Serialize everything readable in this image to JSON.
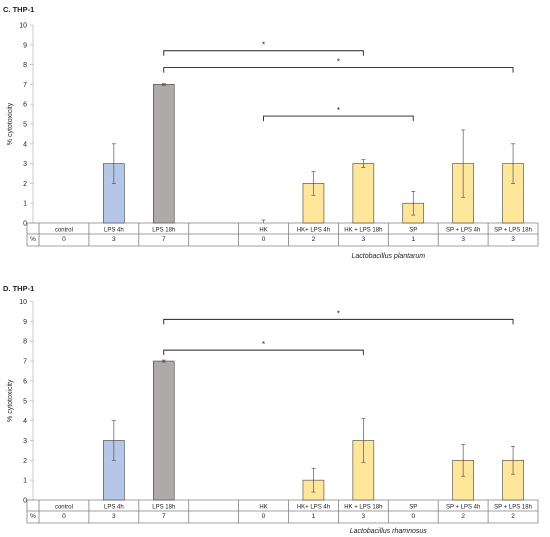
{
  "chart_data": [
    {
      "type": "bar",
      "panel_label": "C. THP-1",
      "ylabel": "% cytotoxicity",
      "ylim": [
        0,
        10
      ],
      "yticks": [
        0,
        1,
        2,
        3,
        4,
        5,
        6,
        7,
        8,
        9,
        10
      ],
      "grid": false,
      "xlabel": "Lactobacillus plantarum",
      "row_label": "%",
      "categories": [
        "control",
        "LPS 4h",
        "LPS 18h",
        "",
        "HK",
        "HK+ LPS 4h",
        "HK + LPS 18h",
        "SP",
        "SP + LPS 4h",
        "SP + LPS 18h"
      ],
      "values": [
        0,
        3,
        7,
        null,
        0,
        2,
        3,
        1,
        3,
        3
      ],
      "error": [
        0,
        1,
        0.05,
        null,
        0.15,
        0.6,
        0.2,
        0.6,
        1.7,
        1
      ],
      "table_values": [
        "0",
        "3",
        "7",
        "",
        "0",
        "2",
        "3",
        "1",
        "3",
        "3"
      ],
      "bar_colors": [
        "",
        "#b4c7e7",
        "#aeaaaa",
        "",
        "#ffe699",
        "#ffe699",
        "#ffe699",
        "#ffe699",
        "#ffe699",
        "#ffe699"
      ],
      "significance": [
        {
          "from": 2,
          "to": 6,
          "label": "*"
        },
        {
          "from": 2,
          "to": 9,
          "label": "*"
        },
        {
          "from": 4,
          "to": 7,
          "label": "*"
        }
      ]
    },
    {
      "type": "bar",
      "panel_label": "D. THP-1",
      "ylabel": "% cytotoxicity",
      "ylim": [
        0,
        10
      ],
      "yticks": [
        0,
        1,
        2,
        3,
        4,
        5,
        6,
        7,
        8,
        9,
        10
      ],
      "grid": false,
      "xlabel": "Lactobacillus rhamnosus",
      "row_label": "%",
      "categories": [
        "control",
        "LPS 4h",
        "LPS 18h",
        "",
        "HK",
        "HK+ LPS 4h",
        "HK + LPS 18h",
        "SP",
        "SP + LPS 4h",
        "SP + LPS 18h"
      ],
      "values": [
        0,
        3,
        7,
        null,
        0,
        1,
        3,
        0,
        2,
        2
      ],
      "error": [
        0,
        1,
        0.05,
        null,
        0,
        0.6,
        1.1,
        0,
        0.8,
        0.7
      ],
      "table_values": [
        "0",
        "3",
        "7",
        "",
        "0",
        "1",
        "3",
        "0",
        "2",
        "2"
      ],
      "bar_colors": [
        "",
        "#b4c7e7",
        "#aeaaaa",
        "",
        "#ffe699",
        "#ffe699",
        "#ffe699",
        "#ffe699",
        "#ffe699",
        "#ffe699"
      ],
      "significance": [
        {
          "from": 2,
          "to": 9,
          "label": "*"
        },
        {
          "from": 2,
          "to": 6,
          "label": "*"
        }
      ]
    }
  ]
}
